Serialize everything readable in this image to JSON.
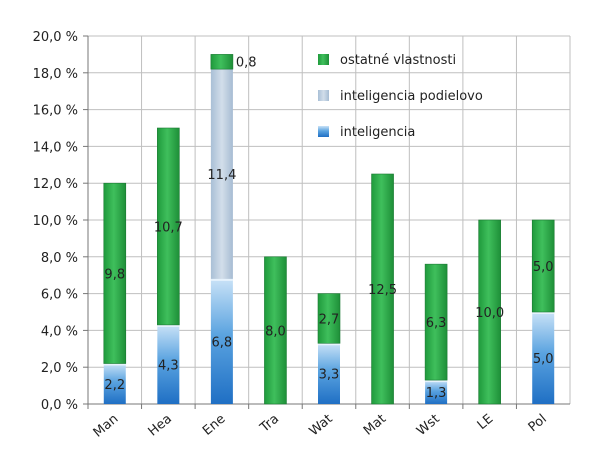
{
  "chart_data": {
    "type": "bar",
    "stacked": true,
    "categories": [
      "Man",
      "Hea",
      "Ene",
      "Tra",
      "Wat",
      "Mat",
      "Wst",
      "LE",
      "Pol"
    ],
    "series": [
      {
        "name": "inteligencia",
        "color": "#3c8ad6",
        "values": [
          2.2,
          4.3,
          6.8,
          0,
          3.3,
          0,
          1.3,
          0,
          5.0
        ],
        "labels": [
          "2,2",
          "4,3",
          "6,8",
          "",
          "3,3",
          "",
          "1,3",
          "",
          "5,0"
        ]
      },
      {
        "name": "inteligencia podielovo",
        "color": "#b7c9dc",
        "values": [
          0,
          0,
          11.4,
          0,
          0,
          0,
          0,
          0,
          0
        ],
        "labels": [
          "",
          "",
          "11,4",
          "",
          "",
          "",
          "",
          "",
          ""
        ]
      },
      {
        "name": "ostatné vlastnosti",
        "color": "#2fa84a",
        "values": [
          9.8,
          10.7,
          0.8,
          8.0,
          2.7,
          12.5,
          6.3,
          10.0,
          5.0
        ],
        "labels": [
          "9,8",
          "10,7",
          "0,8",
          "8,0",
          "2,7",
          "12,5",
          "6,3",
          "10,0",
          "5,0"
        ]
      }
    ],
    "yticks": [
      "0,0 %",
      "2,0 %",
      "4,0 %",
      "6,0 %",
      "8,0 %",
      "10,0 %",
      "12,0 %",
      "14,0 %",
      "16,0 %",
      "18,0 %",
      "20,0 %"
    ],
    "ylim": [
      0,
      20
    ],
    "grid": true,
    "legend_position": "top-right",
    "legend_order": [
      "ostatné vlastnosti",
      "inteligencia podielovo",
      "inteligencia"
    ]
  }
}
